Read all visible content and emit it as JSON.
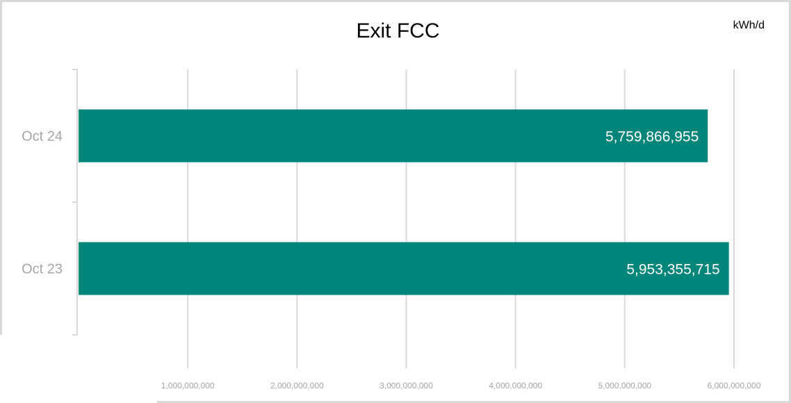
{
  "chart_data": {
    "type": "bar",
    "orientation": "horizontal",
    "title": "Exit FCC",
    "unit": "kWh/d",
    "categories": [
      "Oct 24",
      "Oct 23"
    ],
    "values": [
      5759866955,
      5953355715
    ],
    "value_labels": [
      "5,759,866,955",
      "5,953,355,715"
    ],
    "xlim": [
      0,
      6000000000
    ],
    "xticks": [
      1000000000,
      2000000000,
      3000000000,
      4000000000,
      5000000000,
      6000000000
    ],
    "xtick_labels": [
      "1,000,000,000",
      "2,000,000,000",
      "3,000,000,000",
      "4,000,000,000",
      "5,000,000,000",
      "6,000,000,000"
    ],
    "grid": true,
    "legend": "none"
  },
  "colors": {
    "bar": "#00857a",
    "grid": "#d9d9d9",
    "category_text": "#a6a6a6",
    "tick_text": "#a6a6a6",
    "value_label_text": "#ffffff"
  }
}
